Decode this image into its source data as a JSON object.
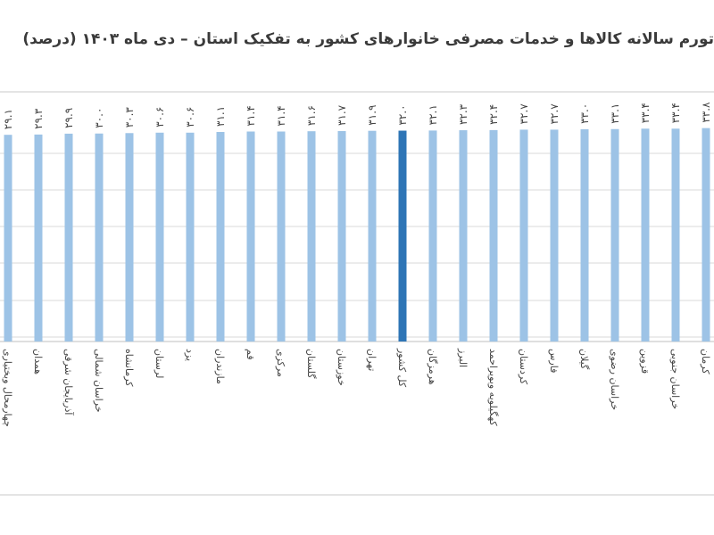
{
  "chart_data": {
    "type": "bar",
    "title": "تورم سالانه کالاها و خدمات مصرفی خانوارهای کشور به تفکیک استان – دی ماه ۱۴۰۳ (درصد)",
    "categories": [
      "چهارمحال وبختیاری",
      "همدان",
      "آذربایجان شرقی",
      "خراسان شمالی",
      "کرمانشاه",
      "لرستان",
      "یزد",
      "مازندران",
      "قم",
      "مرکزی",
      "گلستان",
      "خوزستان",
      "تهران",
      "کل کشور",
      "هرمزگان",
      "البرز",
      "کهگیلویه وبویراحمد",
      "کردستان",
      "فارس",
      "گیلان",
      "خراسان رضوی",
      "قزوین",
      "خراسان جنوبی",
      "کرمان"
    ],
    "values": [
      29.1,
      29.3,
      29.9,
      30.0,
      30.3,
      30.6,
      30.6,
      31.1,
      31.4,
      31.4,
      31.6,
      31.7,
      31.9,
      32.0,
      32.1,
      32.3,
      32.4,
      32.7,
      32.7,
      33.0,
      33.1,
      33.4,
      33.4,
      33.8
    ],
    "value_labels": [
      "۲۹.۱",
      "۲۹.۳",
      "۲۹.۹",
      "۳۰.۰",
      "۳۰.۳",
      "۳۰.۶",
      "۳۰.۶",
      "۳۱.۱",
      "۳۱.۴",
      "۳۱.۴",
      "۳۱.۶",
      "۳۱.۷",
      "۳۱.۹",
      "۳۲.۰",
      "۳۲.۱",
      "۳۲.۳",
      "۳۲.۴",
      "۳۲.۷",
      "۳۲.۷",
      "۳۳.۰",
      "۳۳.۱",
      "۳۳.۴",
      "۳۳.۴",
      "۳۳.۸"
    ],
    "highlight_category": "کل کشور",
    "colors": {
      "bar": "#9dc3e6",
      "highlight": "#2e75b6",
      "grid": "#d9d9d9",
      "label": "#444444"
    },
    "grid": true,
    "legend": "none"
  }
}
